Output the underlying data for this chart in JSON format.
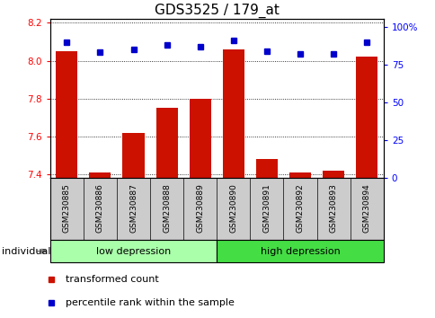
{
  "title": "GDS3525 / 179_at",
  "samples": [
    "GSM230885",
    "GSM230886",
    "GSM230887",
    "GSM230888",
    "GSM230889",
    "GSM230890",
    "GSM230891",
    "GSM230892",
    "GSM230893",
    "GSM230894"
  ],
  "red_values": [
    8.05,
    7.41,
    7.62,
    7.75,
    7.8,
    8.06,
    7.48,
    7.41,
    7.42,
    8.02
  ],
  "blue_values": [
    90,
    83,
    85,
    88,
    87,
    91,
    84,
    82,
    82,
    90
  ],
  "ylim_left": [
    7.38,
    8.22
  ],
  "ylim_right": [
    0,
    105
  ],
  "yticks_left": [
    7.4,
    7.6,
    7.8,
    8.0,
    8.2
  ],
  "yticks_right": [
    0,
    25,
    50,
    75,
    100
  ],
  "ytick_labels_right": [
    "0",
    "25",
    "50",
    "75",
    "100%"
  ],
  "groups": [
    {
      "label": "low depression",
      "start": 0,
      "end": 5,
      "color": "#aaffaa"
    },
    {
      "label": "high depression",
      "start": 5,
      "end": 10,
      "color": "#44dd44"
    }
  ],
  "bar_color": "#cc1100",
  "dot_color": "#0000cc",
  "bar_bottom": 7.38,
  "bg_color": "#ffffff",
  "tick_bg_color": "#cccccc",
  "title_fontsize": 11,
  "tick_fontsize": 7.5,
  "sample_fontsize": 6.5,
  "group_fontsize": 8,
  "legend_fontsize": 8,
  "legend_red_label": "transformed count",
  "legend_blue_label": "percentile rank within the sample",
  "individual_label": "individual",
  "bar_width": 0.65
}
